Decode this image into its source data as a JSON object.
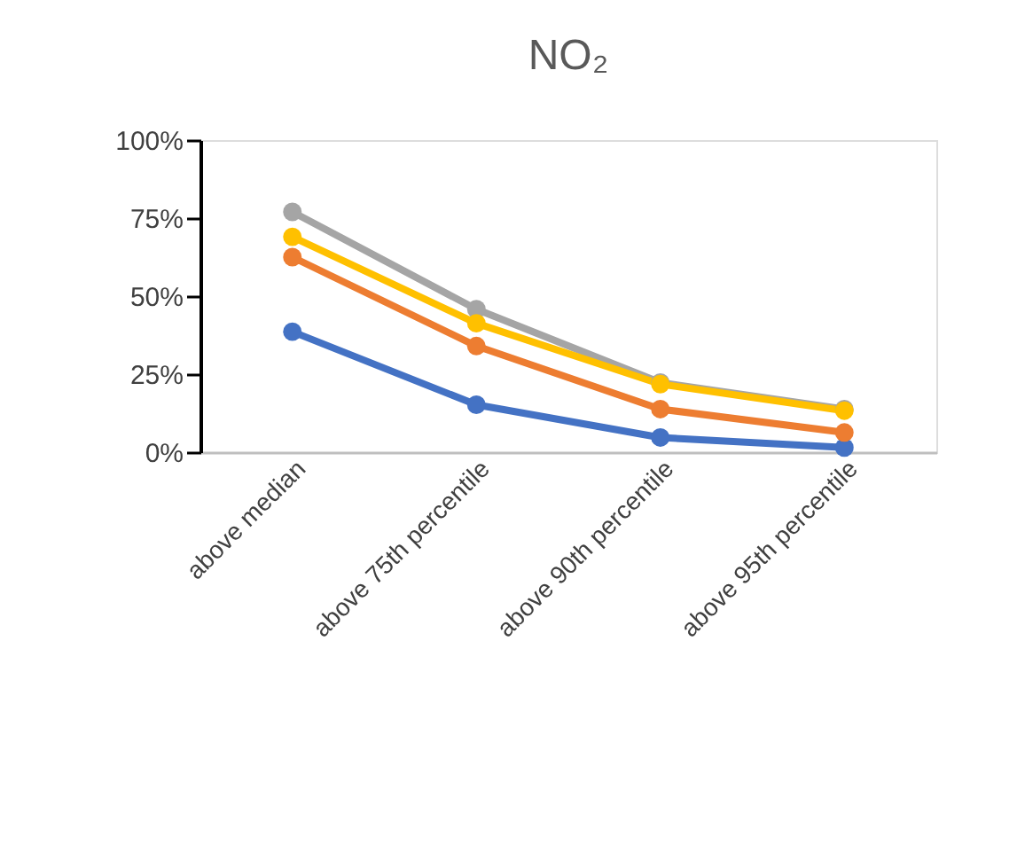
{
  "chart_data": {
    "type": "line",
    "title": "NO₂",
    "categories": [
      "above median",
      "above 75th percentile",
      "above 90th percentile",
      "above 95th percentile"
    ],
    "series": [
      {
        "color": "#4472c4",
        "values": [
          38.6,
          15.2,
          4.7,
          1.5
        ]
      },
      {
        "color": "#ed7d31",
        "values": [
          62.5,
          34,
          13.8,
          6.3
        ]
      },
      {
        "color": "#a5a5a5",
        "values": [
          77,
          45.8,
          22.3,
          13.8
        ]
      },
      {
        "color": "#ffc000",
        "values": [
          69,
          41.3,
          21.8,
          13.3
        ]
      }
    ],
    "ylim": [
      0,
      100
    ],
    "yticks": [
      {
        "value": 0,
        "label": "0%"
      },
      {
        "value": 25,
        "label": "25%"
      },
      {
        "value": 50,
        "label": "50%"
      },
      {
        "value": 75,
        "label": "75%"
      },
      {
        "value": 100,
        "label": "100%"
      }
    ],
    "grid": false,
    "legend": false,
    "marker": "circle",
    "line_style": "solid"
  }
}
